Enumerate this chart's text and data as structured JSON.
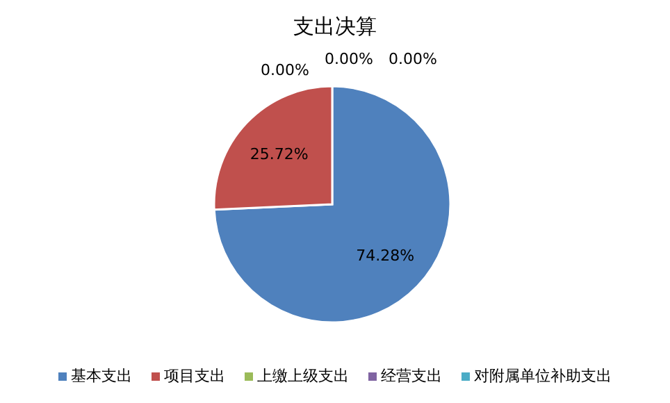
{
  "chart_data": {
    "type": "pie",
    "title": "支出决算",
    "categories": [
      "基本支出",
      "项目支出",
      "上缴上级支出",
      "经营支出",
      "对附属单位补助支出"
    ],
    "values": [
      74.28,
      25.72,
      0,
      0,
      0
    ],
    "colors": [
      "#4f81bd",
      "#c0504d",
      "#9bbb59",
      "#8064a2",
      "#4bacc6"
    ],
    "value_labels": [
      "74.28%",
      "25.72%",
      "0.00%",
      "0.00%",
      "0.00%"
    ],
    "legend": "bottom"
  }
}
